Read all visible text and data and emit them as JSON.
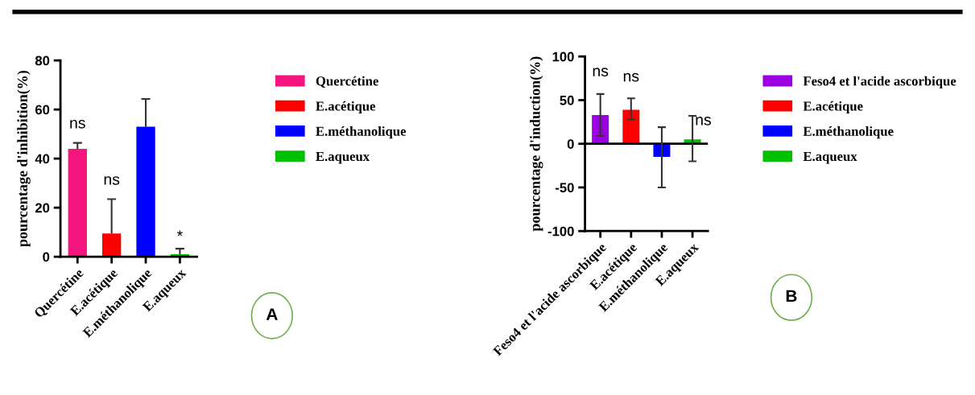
{
  "chart_data": [
    {
      "type": "bar",
      "categories": [
        "Quercétine",
        "E.acétique",
        "E.méthanolique",
        "E.aqueux"
      ],
      "series": [
        {
          "name": "Quercétine",
          "color": "#f5157f",
          "values": [
            44,
            null,
            null,
            null
          ],
          "errors": [
            [
              44,
              46.4
            ],
            null,
            null,
            null
          ]
        },
        {
          "name": "E.acétique",
          "color": "#ff0000",
          "values": [
            null,
            9.5,
            null,
            null
          ],
          "errors": [
            null,
            [
              9.5,
              23.5
            ],
            null,
            null
          ]
        },
        {
          "name": "E.méthanolique",
          "color": "#0000ff",
          "values": [
            null,
            null,
            53,
            null
          ],
          "errors": [
            null,
            null,
            [
              53,
              64.3
            ],
            null
          ]
        },
        {
          "name": "E.aqueux",
          "color": "#00c000",
          "values": [
            null,
            null,
            null,
            1
          ],
          "errors": [
            null,
            null,
            null,
            [
              1,
              3.3
            ]
          ]
        }
      ],
      "ylabel": "pourcentage d'inhibition(%)",
      "ylim": [
        0,
        80
      ],
      "yticks": [
        0,
        20,
        40,
        60,
        80
      ],
      "legend": "right",
      "annotations": [
        "ns",
        "ns",
        "*",
        "A"
      ]
    },
    {
      "type": "bar",
      "categories": [
        "Feso4 et l'acide ascorbique",
        "E.acétique",
        "E.méthanolique",
        "E.aqueux"
      ],
      "series": [
        {
          "name": "Feso4 et l'acide ascorbique",
          "color": "#9b00e0",
          "values": [
            33,
            null,
            null,
            null
          ],
          "errors": [
            [
              9,
              57
            ],
            null,
            null,
            null
          ]
        },
        {
          "name": "E.acétique",
          "color": "#ff0000",
          "values": [
            null,
            39,
            null,
            null
          ],
          "errors": [
            null,
            [
              28,
              52
            ],
            null,
            null
          ]
        },
        {
          "name": "E.méthanolique",
          "color": "#0000ff",
          "values": [
            null,
            null,
            -15,
            null
          ],
          "errors": [
            null,
            null,
            [
              -50,
              19
            ],
            null
          ]
        },
        {
          "name": "E.aqueux",
          "color": "#00c000",
          "values": [
            null,
            null,
            null,
            5
          ],
          "errors": [
            null,
            null,
            null,
            [
              -20,
              32
            ]
          ]
        }
      ],
      "ylabel": "pourcentage d'induction(%)",
      "ylim": [
        -100,
        100
      ],
      "yticks": [
        -100,
        -50,
        0,
        50,
        100
      ],
      "legend": "right",
      "ref_lines": [
        {
          "axis": "y",
          "value": 0,
          "color": "#000000"
        }
      ],
      "annotations": [
        "ns",
        "ns",
        "ns",
        "B"
      ]
    }
  ]
}
